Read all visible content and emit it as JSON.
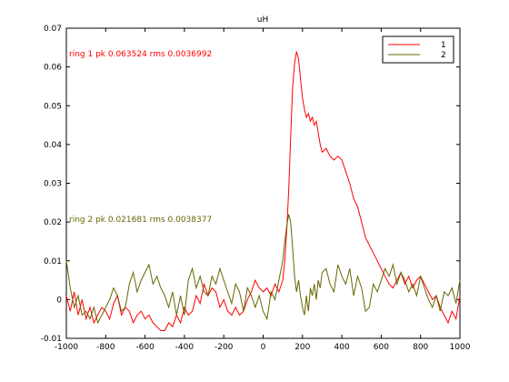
{
  "chart_data": {
    "type": "line",
    "title": "uH",
    "xlabel": "",
    "ylabel": "",
    "xlim": [
      -1000,
      1000
    ],
    "ylim": [
      -0.01,
      0.07
    ],
    "xticks": [
      -1000,
      -800,
      -600,
      -400,
      -200,
      0,
      200,
      400,
      600,
      800,
      1000
    ],
    "xtick_labels": [
      "-1000",
      "-800",
      "-600",
      "-400",
      "-200",
      "0",
      "200",
      "400",
      "600",
      "800",
      "1000"
    ],
    "yticks": [
      -0.01,
      0,
      0.01,
      0.02,
      0.03,
      0.04,
      0.05,
      0.06,
      0.07
    ],
    "ytick_labels": [
      "-0.01",
      "0",
      "0.01",
      "0.02",
      "0.03",
      "0.04",
      "0.05",
      "0.06",
      "0.07"
    ],
    "grid": false,
    "legend": {
      "position": "top-right"
    },
    "series": [
      {
        "name": "1",
        "color": "#ff0000",
        "x": [
          -1000,
          -980,
          -960,
          -940,
          -920,
          -900,
          -880,
          -860,
          -840,
          -820,
          -800,
          -780,
          -760,
          -740,
          -720,
          -700,
          -680,
          -660,
          -640,
          -620,
          -600,
          -580,
          -560,
          -540,
          -520,
          -500,
          -480,
          -460,
          -440,
          -420,
          -400,
          -380,
          -360,
          -340,
          -320,
          -300,
          -280,
          -260,
          -240,
          -220,
          -200,
          -180,
          -160,
          -140,
          -120,
          -100,
          -80,
          -60,
          -40,
          -20,
          0,
          20,
          40,
          60,
          80,
          100,
          110,
          120,
          130,
          140,
          150,
          160,
          170,
          180,
          190,
          200,
          210,
          220,
          230,
          240,
          250,
          260,
          270,
          280,
          290,
          300,
          320,
          340,
          360,
          380,
          400,
          420,
          440,
          460,
          480,
          500,
          520,
          540,
          560,
          580,
          600,
          620,
          640,
          660,
          680,
          700,
          720,
          740,
          760,
          780,
          800,
          820,
          840,
          860,
          880,
          900,
          920,
          940,
          960,
          980,
          1000
        ],
        "y": [
          0.001,
          -0.003,
          0.002,
          -0.004,
          0.0,
          -0.005,
          -0.002,
          -0.006,
          -0.004,
          -0.002,
          -0.003,
          -0.005,
          -0.001,
          0.001,
          -0.004,
          -0.002,
          -0.003,
          -0.006,
          -0.004,
          -0.003,
          -0.005,
          -0.004,
          -0.006,
          -0.007,
          -0.008,
          -0.008,
          -0.006,
          -0.007,
          -0.004,
          -0.006,
          -0.002,
          -0.004,
          -0.003,
          0.001,
          -0.001,
          0.004,
          0.001,
          0.003,
          0.002,
          -0.002,
          0.0,
          -0.003,
          -0.004,
          -0.002,
          -0.004,
          -0.003,
          0.0,
          0.002,
          0.005,
          0.003,
          0.002,
          0.003,
          0.001,
          0.004,
          0.002,
          0.005,
          0.01,
          0.018,
          0.028,
          0.042,
          0.055,
          0.061,
          0.064,
          0.062,
          0.057,
          0.052,
          0.049,
          0.047,
          0.048,
          0.046,
          0.047,
          0.045,
          0.046,
          0.043,
          0.04,
          0.038,
          0.039,
          0.037,
          0.036,
          0.037,
          0.036,
          0.033,
          0.03,
          0.026,
          0.024,
          0.02,
          0.016,
          0.014,
          0.012,
          0.01,
          0.008,
          0.006,
          0.004,
          0.003,
          0.005,
          0.007,
          0.004,
          0.006,
          0.003,
          0.005,
          0.006,
          0.004,
          0.002,
          0.0,
          0.001,
          -0.002,
          -0.004,
          -0.006,
          -0.003,
          -0.005,
          0.001
        ]
      },
      {
        "name": "2",
        "color": "#666600",
        "x": [
          -1000,
          -980,
          -960,
          -940,
          -920,
          -900,
          -880,
          -860,
          -840,
          -820,
          -800,
          -780,
          -760,
          -740,
          -720,
          -700,
          -680,
          -660,
          -640,
          -620,
          -600,
          -580,
          -560,
          -540,
          -520,
          -500,
          -480,
          -460,
          -440,
          -420,
          -400,
          -380,
          -360,
          -340,
          -320,
          -300,
          -280,
          -260,
          -240,
          -220,
          -200,
          -180,
          -160,
          -140,
          -120,
          -100,
          -80,
          -60,
          -40,
          -20,
          0,
          20,
          40,
          60,
          80,
          100,
          110,
          120,
          130,
          140,
          150,
          160,
          170,
          180,
          190,
          200,
          210,
          220,
          230,
          240,
          250,
          260,
          270,
          280,
          290,
          300,
          320,
          340,
          360,
          380,
          400,
          420,
          440,
          460,
          480,
          500,
          520,
          540,
          560,
          580,
          600,
          620,
          640,
          660,
          680,
          700,
          720,
          740,
          760,
          780,
          800,
          820,
          840,
          860,
          880,
          900,
          920,
          940,
          960,
          980,
          1000
        ],
        "y": [
          0.01,
          0.003,
          -0.002,
          0.001,
          -0.004,
          -0.003,
          -0.005,
          -0.002,
          -0.006,
          -0.004,
          -0.002,
          0.0,
          0.003,
          0.001,
          -0.003,
          -0.002,
          0.004,
          0.007,
          0.002,
          0.005,
          0.007,
          0.009,
          0.004,
          0.006,
          0.003,
          0.001,
          -0.002,
          0.002,
          -0.004,
          0.001,
          -0.004,
          0.005,
          0.008,
          0.003,
          0.006,
          0.002,
          0.001,
          0.006,
          0.004,
          0.008,
          0.005,
          0.002,
          -0.001,
          0.004,
          0.002,
          -0.003,
          0.003,
          0.001,
          -0.002,
          0.001,
          -0.003,
          -0.005,
          0.002,
          0.0,
          0.005,
          0.01,
          0.015,
          0.019,
          0.022,
          0.02,
          0.013,
          0.006,
          0.002,
          0.005,
          0.001,
          -0.002,
          -0.004,
          0.001,
          -0.003,
          0.003,
          0.001,
          0.004,
          0.0,
          0.005,
          0.003,
          0.007,
          0.008,
          0.004,
          0.002,
          0.009,
          0.006,
          0.004,
          0.008,
          0.001,
          0.006,
          0.003,
          -0.003,
          -0.002,
          0.004,
          0.002,
          0.005,
          0.008,
          0.006,
          0.009,
          0.004,
          0.007,
          0.005,
          0.002,
          0.004,
          0.001,
          0.006,
          0.003,
          0.0,
          -0.002,
          0.001,
          -0.003,
          0.002,
          0.001,
          0.003,
          -0.001,
          0.005
        ]
      }
    ],
    "annotations": [
      {
        "text": "ring 1 pk 0.063524 rms 0.0036992",
        "color": "#ff0000"
      },
      {
        "text": "ring 2 pk 0.021681 rms 0.0038377",
        "color": "#666600"
      }
    ]
  }
}
